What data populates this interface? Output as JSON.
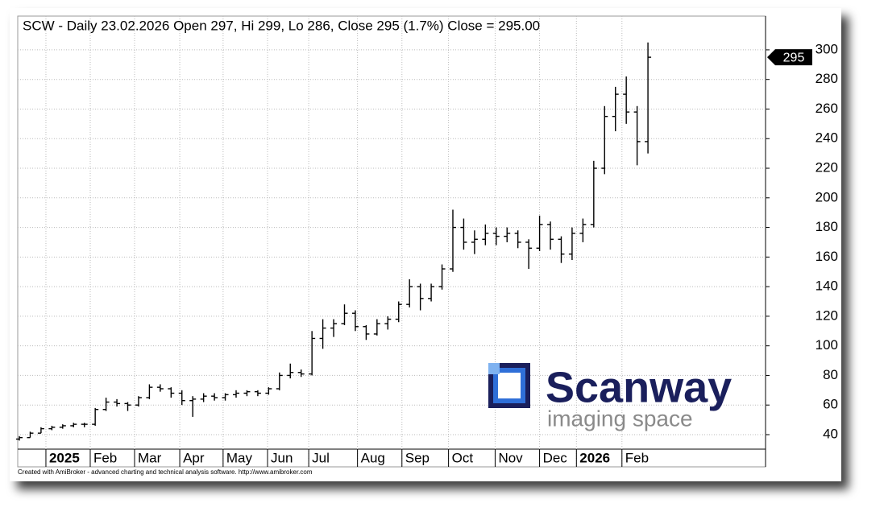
{
  "chart_data": {
    "type": "ohlc",
    "title": "SCW - Daily 23.02.2026 Open 297, Hi 299, Lo 286, Close 295 (1.7%) Close = 295.00",
    "footer": "Created with AmiBroker - advanced charting and technical analysis software. http://www.amibroker.com",
    "logo_text": "Scanway",
    "logo_tagline": "imaging space",
    "last_close": 295,
    "color": "#000000",
    "grid": true,
    "x": [
      0,
      1,
      2,
      3,
      4,
      5,
      6,
      7,
      8,
      9,
      10,
      11,
      12,
      13,
      14,
      15,
      16,
      17,
      18,
      19,
      20,
      21,
      22,
      23,
      24,
      25,
      26,
      27,
      28,
      29,
      30,
      31,
      32,
      33,
      34,
      35,
      36,
      37,
      38,
      39,
      40,
      41,
      42,
      43,
      44,
      45,
      46,
      47,
      48,
      49,
      50,
      51,
      52,
      53,
      54,
      55,
      56,
      57,
      58
    ],
    "open": [
      37,
      38,
      41,
      44,
      45,
      46,
      47,
      47,
      57,
      62,
      61,
      60,
      65,
      72,
      71,
      68,
      63,
      64,
      66,
      65,
      67,
      68,
      69,
      68,
      71,
      80,
      82,
      81,
      105,
      112,
      115,
      122,
      113,
      108,
      115,
      118,
      128,
      140,
      132,
      140,
      152,
      180,
      170,
      172,
      176,
      174,
      176,
      170,
      166,
      182,
      172,
      162,
      176,
      182,
      220,
      255,
      270,
      258,
      238
    ],
    "high": [
      39,
      42,
      45,
      46,
      47,
      48,
      48,
      58,
      65,
      64,
      62,
      66,
      74,
      74,
      72,
      70,
      66,
      68,
      68,
      68,
      70,
      70,
      70,
      72,
      82,
      88,
      84,
      110,
      118,
      118,
      128,
      124,
      114,
      118,
      120,
      130,
      145,
      142,
      142,
      155,
      192,
      186,
      178,
      182,
      180,
      180,
      178,
      172,
      188,
      184,
      174,
      180,
      186,
      225,
      262,
      275,
      282,
      262,
      305
    ],
    "low": [
      36,
      38,
      41,
      43,
      44,
      45,
      45,
      46,
      56,
      59,
      56,
      59,
      64,
      69,
      65,
      60,
      52,
      62,
      63,
      63,
      65,
      66,
      66,
      67,
      70,
      78,
      79,
      80,
      98,
      106,
      114,
      110,
      104,
      107,
      111,
      116,
      126,
      124,
      130,
      138,
      150,
      165,
      162,
      168,
      168,
      170,
      166,
      152,
      164,
      165,
      156,
      158,
      170,
      180,
      216,
      245,
      250,
      222,
      230
    ],
    "close": [
      38,
      41,
      44,
      45,
      46,
      47,
      47,
      57,
      62,
      61,
      60,
      65,
      72,
      71,
      68,
      63,
      64,
      66,
      65,
      67,
      68,
      69,
      68,
      71,
      80,
      82,
      81,
      105,
      112,
      115,
      122,
      113,
      108,
      115,
      118,
      128,
      140,
      132,
      140,
      152,
      180,
      170,
      172,
      176,
      174,
      176,
      170,
      166,
      182,
      172,
      162,
      176,
      182,
      220,
      255,
      270,
      258,
      238,
      295
    ],
    "xlim": [
      -0.15,
      68.85
    ],
    "ylim": [
      30.2,
      322.8
    ],
    "yticks": [
      40,
      60,
      80,
      100,
      120,
      140,
      160,
      180,
      200,
      220,
      240,
      260,
      280,
      300
    ],
    "xticks": [
      {
        "value": 2.45,
        "label": "2025"
      },
      {
        "value": 6.54,
        "label": "Feb"
      },
      {
        "value": 10.63,
        "label": "Mar"
      },
      {
        "value": 14.8,
        "label": "Apr"
      },
      {
        "value": 18.8,
        "label": "May"
      },
      {
        "value": 22.9,
        "label": "Jun"
      },
      {
        "value": 26.7,
        "label": "Jul"
      },
      {
        "value": 31.2,
        "label": "Aug"
      },
      {
        "value": 35.3,
        "label": "Sep"
      },
      {
        "value": 39.6,
        "label": "Oct"
      },
      {
        "value": 43.9,
        "label": "Nov"
      },
      {
        "value": 48.0,
        "label": "Dec"
      },
      {
        "value": 51.4,
        "label": "2026"
      },
      {
        "value": 55.6,
        "label": "Feb"
      }
    ]
  }
}
